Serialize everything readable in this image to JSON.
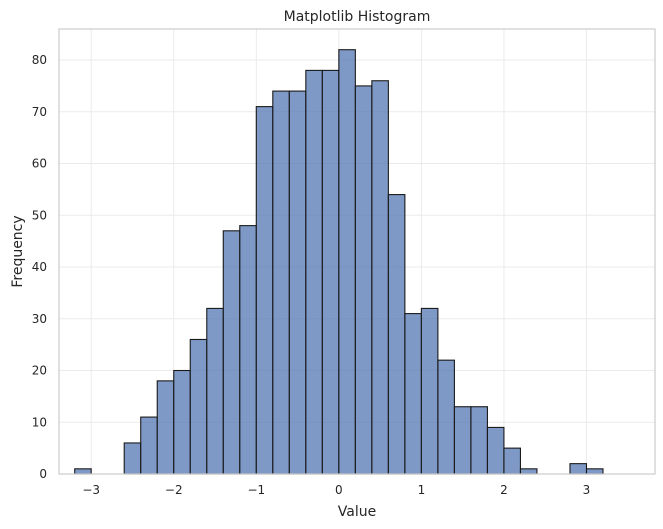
{
  "chart_data": {
    "type": "bar",
    "title": "Matplotlib Histogram",
    "xlabel": "Value",
    "ylabel": "Frequency",
    "xlim": [
      -3.39,
      3.83
    ],
    "ylim": [
      0,
      86
    ],
    "bin_edges": [
      -3.2,
      -3.0,
      -2.8,
      -2.6,
      -2.4,
      -2.2,
      -2.0,
      -1.8,
      -1.6,
      -1.4,
      -1.2,
      -1.0,
      -0.8,
      -0.6,
      -0.4,
      -0.2,
      0.0,
      0.2,
      0.4,
      0.6,
      0.8,
      1.0,
      1.2,
      1.4,
      1.6,
      1.8,
      2.0,
      2.2,
      2.4,
      2.6,
      2.8,
      3.0,
      3.2,
      3.4,
      3.6
    ],
    "values": [
      1,
      0,
      0,
      6,
      11,
      18,
      20,
      26,
      32,
      47,
      48,
      71,
      74,
      74,
      78,
      78,
      82,
      75,
      76,
      54,
      31,
      32,
      22,
      13,
      13,
      9,
      5,
      1,
      0,
      0,
      2,
      1,
      0,
      0
    ],
    "x_ticks": [
      -3,
      -2,
      -1,
      0,
      1,
      2,
      3
    ],
    "x_tick_labels": [
      "−3",
      "−2",
      "−1",
      "0",
      "1",
      "2",
      "3"
    ],
    "y_ticks": [
      0,
      10,
      20,
      30,
      40,
      50,
      60,
      70,
      80
    ],
    "y_tick_labels": [
      "0",
      "10",
      "20",
      "30",
      "40",
      "50",
      "60",
      "70",
      "80"
    ],
    "grid": true,
    "bar_color": "#4c72b0",
    "edge_color": "#1a1a1a"
  }
}
